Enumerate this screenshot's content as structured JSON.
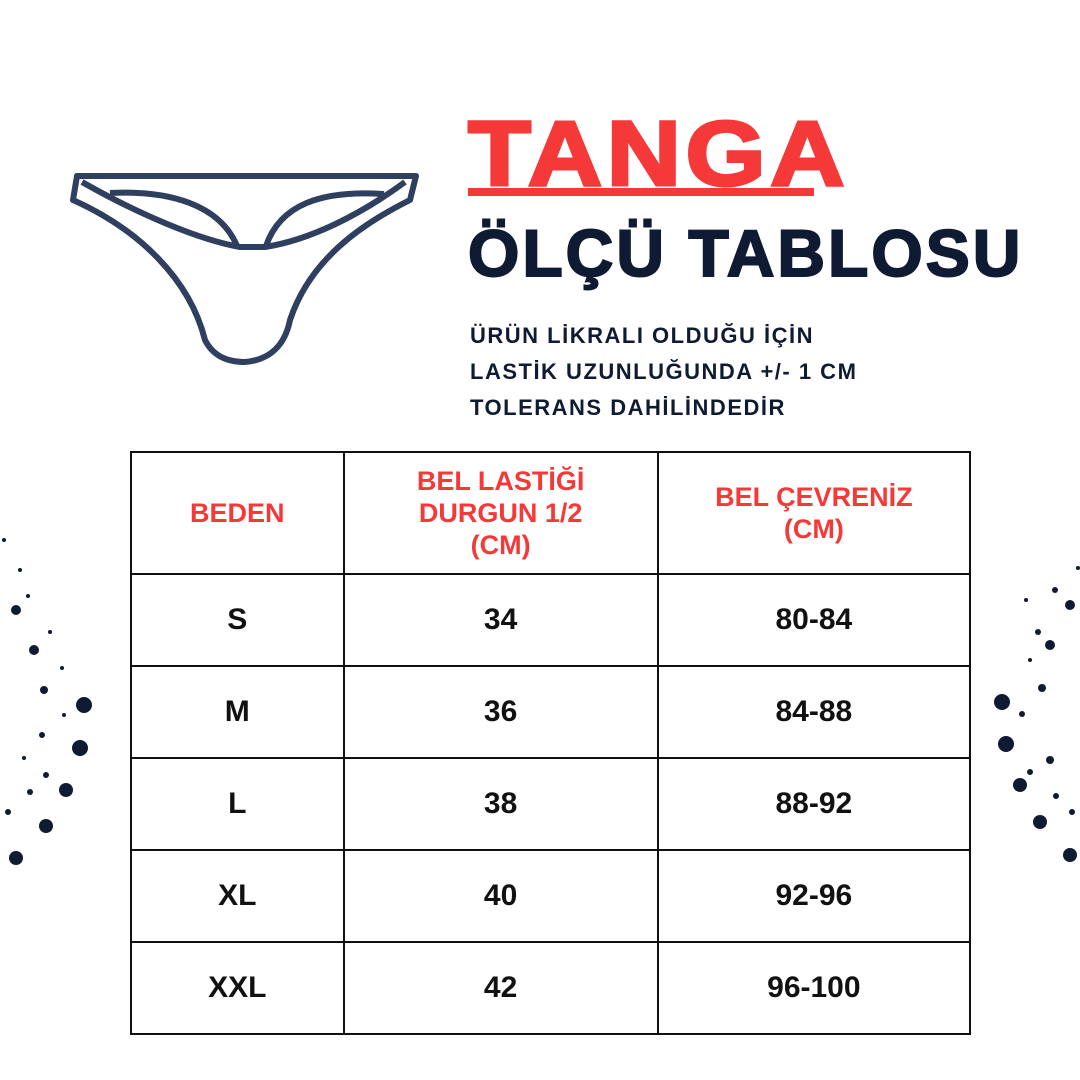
{
  "header": {
    "title": "TANGA",
    "subtitle": "ÖLÇÜ TABLOSU",
    "note_lines": [
      "ÜRÜN LİKRALI OLDUĞU İÇİN",
      "LASTİK UZUNLUĞUNDA +/- 1 CM",
      "TOLERANS DAHİLİNDEDİR"
    ]
  },
  "colors": {
    "accent": "#f53838",
    "navy": "#0f1b33",
    "illustration": "#2f3f5f"
  },
  "illustration": "thong-underwear-icon",
  "table": {
    "headers": [
      [
        "BEDEN"
      ],
      [
        "BEL LASTİĞİ",
        "DURGUN 1/2",
        "(CM)"
      ],
      [
        "BEL ÇEVRENİZ",
        "(CM)"
      ]
    ],
    "rows": [
      [
        "S",
        "34",
        "80-84"
      ],
      [
        "M",
        "36",
        "84-88"
      ],
      [
        "L",
        "38",
        "88-92"
      ],
      [
        "XL",
        "40",
        "92-96"
      ],
      [
        "XXL",
        "42",
        "96-100"
      ]
    ]
  }
}
